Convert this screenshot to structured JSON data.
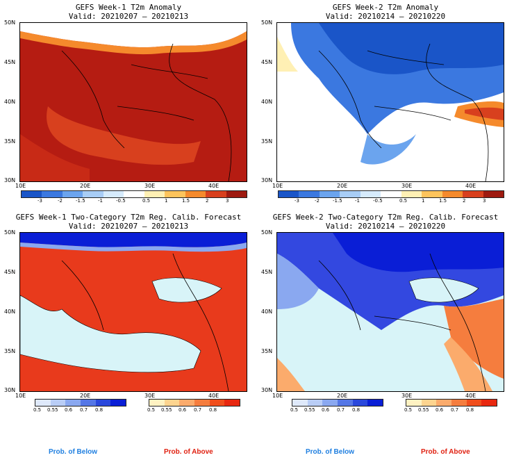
{
  "panels": [
    {
      "title": "GEFS Week-1 T2m Anomaly",
      "valid": "Valid: 20210207 – 20210213"
    },
    {
      "title": "GEFS Week-2 T2m Anomaly",
      "valid": "Valid: 20210214 – 20210220"
    },
    {
      "title": "GEFS Week-1 Two-Category T2m Reg. Calib. Forecast",
      "valid": "Valid: 20210207 – 20210213"
    },
    {
      "title": "GEFS Week-2 Two-Category T2m Reg. Calib. Forecast",
      "valid": "Valid: 20210214 – 20210220"
    }
  ],
  "axes": {
    "lat": [
      "50N",
      "45N",
      "40N",
      "35N",
      "30N"
    ],
    "lon": [
      "10E",
      "20E",
      "30E",
      "40E"
    ]
  },
  "anomaly_colorbar": {
    "ticks": [
      "-3",
      "-2",
      "-1.5",
      "-1",
      "-0.5",
      "0.5",
      "1",
      "1.5",
      "2",
      "3"
    ],
    "colors": [
      "#1a55c8",
      "#3b78e0",
      "#6ba4ee",
      "#a8cdf6",
      "#d6ebfc",
      "#ffffff",
      "#fff0b4",
      "#fdc45c",
      "#f58a2c",
      "#d8401e",
      "#9e1a10"
    ]
  },
  "prob_colorbars": {
    "below_ticks": [
      "0.5",
      "0.55",
      "0.6",
      "0.7",
      "0.8"
    ],
    "below_colors": [
      "#dfe9fb",
      "#b9cdf6",
      "#8aa8f0",
      "#5577e6",
      "#2a48dc",
      "#0a1ed6"
    ],
    "above_ticks": [
      "0.5",
      "0.55",
      "0.6",
      "0.7",
      "0.8"
    ],
    "above_colors": [
      "#fff2c2",
      "#fdd48f",
      "#fbab6c",
      "#f57d3e",
      "#f04e1c",
      "#e82810"
    ]
  },
  "labels": {
    "below": "Prob. of Below",
    "above": "Prob. of Above"
  },
  "colors": {
    "below_label": "#1f7fe0",
    "above_label": "#e02010",
    "sea_fill": "#d8f4f8",
    "land_outline": "#000000"
  }
}
